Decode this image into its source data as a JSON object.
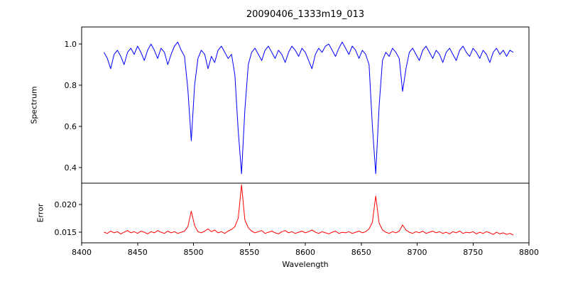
{
  "figure": {
    "title": "20090406_1333m19_013",
    "xlabel": "Wavelength",
    "background": "#ffffff"
  },
  "chart_data": [
    {
      "type": "line",
      "name": "spectrum",
      "ylabel": "Spectrum",
      "color": "#0000ff",
      "xlim": [
        8400,
        8800
      ],
      "ylim": [
        0.324,
        1.083
      ],
      "xticks": [
        8400,
        8450,
        8500,
        8550,
        8600,
        8650,
        8700,
        8750,
        8800
      ],
      "xtick_labels": [
        "8400",
        "8450",
        "8500",
        "8550",
        "8600",
        "8650",
        "8700",
        "8750",
        "8800"
      ],
      "yticks": [
        0.4,
        0.6,
        0.8,
        1.0
      ],
      "ytick_labels": [
        "0.4",
        "0.6",
        "0.8",
        "1.0"
      ],
      "x": [
        8420,
        8423,
        8426,
        8429,
        8432,
        8435,
        8438,
        8441,
        8444,
        8447,
        8450,
        8453,
        8456,
        8459,
        8462,
        8465,
        8468,
        8471,
        8474,
        8477,
        8480,
        8483,
        8486,
        8489,
        8492,
        8495,
        8498,
        8501,
        8504,
        8507,
        8510,
        8513,
        8516,
        8519,
        8522,
        8525,
        8528,
        8531,
        8534,
        8537,
        8540,
        8543,
        8546,
        8549,
        8552,
        8555,
        8558,
        8561,
        8564,
        8567,
        8570,
        8573,
        8576,
        8579,
        8582,
        8585,
        8588,
        8591,
        8594,
        8597,
        8600,
        8603,
        8606,
        8609,
        8612,
        8615,
        8618,
        8621,
        8624,
        8627,
        8630,
        8633,
        8636,
        8639,
        8642,
        8645,
        8648,
        8651,
        8654,
        8657,
        8660,
        8663,
        8666,
        8669,
        8672,
        8675,
        8678,
        8681,
        8684,
        8687,
        8690,
        8693,
        8696,
        8699,
        8702,
        8705,
        8708,
        8711,
        8714,
        8717,
        8720,
        8723,
        8726,
        8729,
        8732,
        8735,
        8738,
        8741,
        8744,
        8747,
        8750,
        8753,
        8756,
        8759,
        8762,
        8765,
        8768,
        8771,
        8774,
        8777,
        8780,
        8783,
        8786
      ],
      "y": [
        0.96,
        0.93,
        0.88,
        0.95,
        0.97,
        0.94,
        0.9,
        0.96,
        0.98,
        0.95,
        0.99,
        0.96,
        0.92,
        0.97,
        1.0,
        0.97,
        0.93,
        0.98,
        0.96,
        0.9,
        0.95,
        0.99,
        1.01,
        0.97,
        0.94,
        0.78,
        0.53,
        0.8,
        0.93,
        0.97,
        0.95,
        0.88,
        0.94,
        0.91,
        0.97,
        0.99,
        0.96,
        0.93,
        0.95,
        0.85,
        0.58,
        0.37,
        0.68,
        0.9,
        0.96,
        0.98,
        0.95,
        0.92,
        0.97,
        0.99,
        0.96,
        0.93,
        0.97,
        0.95,
        0.91,
        0.96,
        0.99,
        0.97,
        0.94,
        0.98,
        0.96,
        0.92,
        0.88,
        0.95,
        0.98,
        0.96,
        0.99,
        1.0,
        0.97,
        0.94,
        0.98,
        1.01,
        0.98,
        0.95,
        0.99,
        0.97,
        0.93,
        0.97,
        0.95,
        0.9,
        0.6,
        0.37,
        0.7,
        0.92,
        0.96,
        0.94,
        0.98,
        0.96,
        0.93,
        0.77,
        0.88,
        0.96,
        0.98,
        0.95,
        0.92,
        0.97,
        0.99,
        0.96,
        0.93,
        0.97,
        0.95,
        0.91,
        0.96,
        0.98,
        0.95,
        0.92,
        0.97,
        0.99,
        0.96,
        0.94,
        0.98,
        0.96,
        0.93,
        0.97,
        0.95,
        0.91,
        0.96,
        0.98,
        0.95,
        0.97,
        0.94,
        0.97,
        0.96
      ]
    },
    {
      "type": "line",
      "name": "error",
      "ylabel": "Error",
      "color": "#ff0000",
      "xlim": [
        8400,
        8800
      ],
      "ylim": [
        0.0131,
        0.0238
      ],
      "xticks": [
        8400,
        8450,
        8500,
        8550,
        8600,
        8650,
        8700,
        8750,
        8800
      ],
      "xtick_labels": [
        "8400",
        "8450",
        "8500",
        "8550",
        "8600",
        "8650",
        "8700",
        "8750",
        "8800"
      ],
      "yticks": [
        0.015,
        0.02
      ],
      "ytick_labels": [
        "0.015",
        "0.020"
      ],
      "x": [
        8420,
        8423,
        8426,
        8429,
        8432,
        8435,
        8438,
        8441,
        8444,
        8447,
        8450,
        8453,
        8456,
        8459,
        8462,
        8465,
        8468,
        8471,
        8474,
        8477,
        8480,
        8483,
        8486,
        8489,
        8492,
        8495,
        8498,
        8501,
        8504,
        8507,
        8510,
        8513,
        8516,
        8519,
        8522,
        8525,
        8528,
        8531,
        8534,
        8537,
        8540,
        8543,
        8546,
        8549,
        8552,
        8555,
        8558,
        8561,
        8564,
        8567,
        8570,
        8573,
        8576,
        8579,
        8582,
        8585,
        8588,
        8591,
        8594,
        8597,
        8600,
        8603,
        8606,
        8609,
        8612,
        8615,
        8618,
        8621,
        8624,
        8627,
        8630,
        8633,
        8636,
        8639,
        8642,
        8645,
        8648,
        8651,
        8654,
        8657,
        8660,
        8663,
        8666,
        8669,
        8672,
        8675,
        8678,
        8681,
        8684,
        8687,
        8690,
        8693,
        8696,
        8699,
        8702,
        8705,
        8708,
        8711,
        8714,
        8717,
        8720,
        8723,
        8726,
        8729,
        8732,
        8735,
        8738,
        8741,
        8744,
        8747,
        8750,
        8753,
        8756,
        8759,
        8762,
        8765,
        8768,
        8771,
        8774,
        8777,
        8780,
        8783,
        8786
      ],
      "y": [
        0.015,
        0.0148,
        0.0152,
        0.0149,
        0.0151,
        0.0147,
        0.015,
        0.0153,
        0.0149,
        0.0151,
        0.0148,
        0.0152,
        0.015,
        0.0147,
        0.0151,
        0.0149,
        0.0153,
        0.015,
        0.0148,
        0.0152,
        0.0149,
        0.0151,
        0.0148,
        0.015,
        0.0152,
        0.016,
        0.0188,
        0.0162,
        0.0151,
        0.0149,
        0.0152,
        0.0156,
        0.0151,
        0.0154,
        0.0149,
        0.0151,
        0.0148,
        0.0152,
        0.0155,
        0.016,
        0.0175,
        0.0235,
        0.0172,
        0.0158,
        0.0152,
        0.0149,
        0.0151,
        0.0153,
        0.0148,
        0.015,
        0.0152,
        0.0149,
        0.0147,
        0.0151,
        0.0153,
        0.0149,
        0.0151,
        0.0148,
        0.015,
        0.0152,
        0.0149,
        0.0151,
        0.0154,
        0.015,
        0.0148,
        0.0151,
        0.0149,
        0.0147,
        0.015,
        0.0152,
        0.0148,
        0.015,
        0.0149,
        0.0151,
        0.0148,
        0.015,
        0.0152,
        0.0149,
        0.0151,
        0.0156,
        0.0168,
        0.0215,
        0.0166,
        0.0154,
        0.015,
        0.0148,
        0.0151,
        0.0149,
        0.0152,
        0.0163,
        0.0154,
        0.015,
        0.0148,
        0.0151,
        0.0149,
        0.0152,
        0.0148,
        0.015,
        0.0152,
        0.0149,
        0.0151,
        0.0148,
        0.015,
        0.0147,
        0.0151,
        0.0149,
        0.0152,
        0.0148,
        0.015,
        0.0149,
        0.0151,
        0.0147,
        0.015,
        0.0148,
        0.0151,
        0.0149,
        0.0146,
        0.015,
        0.0147,
        0.0149,
        0.0146,
        0.0148,
        0.0145
      ]
    }
  ]
}
